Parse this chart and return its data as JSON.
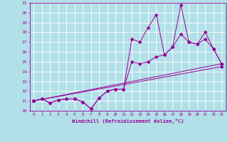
{
  "xlabel": "Windchill (Refroidissement éolien,°C)",
  "xlim": [
    -0.5,
    23.5
  ],
  "ylim": [
    10,
    21
  ],
  "xticks": [
    0,
    1,
    2,
    3,
    4,
    5,
    6,
    7,
    8,
    9,
    10,
    11,
    12,
    13,
    14,
    15,
    16,
    17,
    18,
    19,
    20,
    21,
    22,
    23
  ],
  "yticks": [
    10,
    11,
    12,
    13,
    14,
    15,
    16,
    17,
    18,
    19,
    20,
    21
  ],
  "bg_color": "#b2e0e8",
  "line_color": "#990099",
  "grid_color": "#ffffff",
  "series1": [
    [
      0,
      11.0
    ],
    [
      1,
      11.2
    ],
    [
      2,
      10.8
    ],
    [
      3,
      11.1
    ],
    [
      4,
      11.2
    ],
    [
      5,
      11.2
    ],
    [
      6,
      10.9
    ],
    [
      7,
      10.2
    ],
    [
      8,
      11.3
    ],
    [
      9,
      12.0
    ],
    [
      10,
      12.2
    ],
    [
      11,
      12.2
    ],
    [
      12,
      17.3
    ],
    [
      13,
      17.0
    ],
    [
      14,
      18.5
    ],
    [
      15,
      19.8
    ],
    [
      16,
      15.7
    ],
    [
      17,
      16.5
    ],
    [
      18,
      20.8
    ],
    [
      19,
      17.0
    ],
    [
      20,
      16.8
    ],
    [
      21,
      18.0
    ],
    [
      22,
      16.3
    ],
    [
      23,
      14.8
    ]
  ],
  "series2": [
    [
      0,
      11.0
    ],
    [
      1,
      11.2
    ],
    [
      2,
      10.8
    ],
    [
      3,
      11.1
    ],
    [
      4,
      11.2
    ],
    [
      5,
      11.2
    ],
    [
      6,
      10.9
    ],
    [
      7,
      10.2
    ],
    [
      8,
      11.3
    ],
    [
      9,
      12.0
    ],
    [
      10,
      12.2
    ],
    [
      11,
      12.2
    ],
    [
      12,
      15.0
    ],
    [
      13,
      14.8
    ],
    [
      14,
      15.0
    ],
    [
      15,
      15.5
    ],
    [
      16,
      15.7
    ],
    [
      17,
      16.5
    ],
    [
      18,
      17.8
    ],
    [
      19,
      17.0
    ],
    [
      20,
      16.8
    ],
    [
      21,
      17.3
    ],
    [
      22,
      16.3
    ],
    [
      23,
      14.8
    ]
  ],
  "series3": [
    [
      0,
      11.0
    ],
    [
      23,
      14.8
    ]
  ],
  "series4": [
    [
      0,
      11.0
    ],
    [
      23,
      14.5
    ]
  ]
}
